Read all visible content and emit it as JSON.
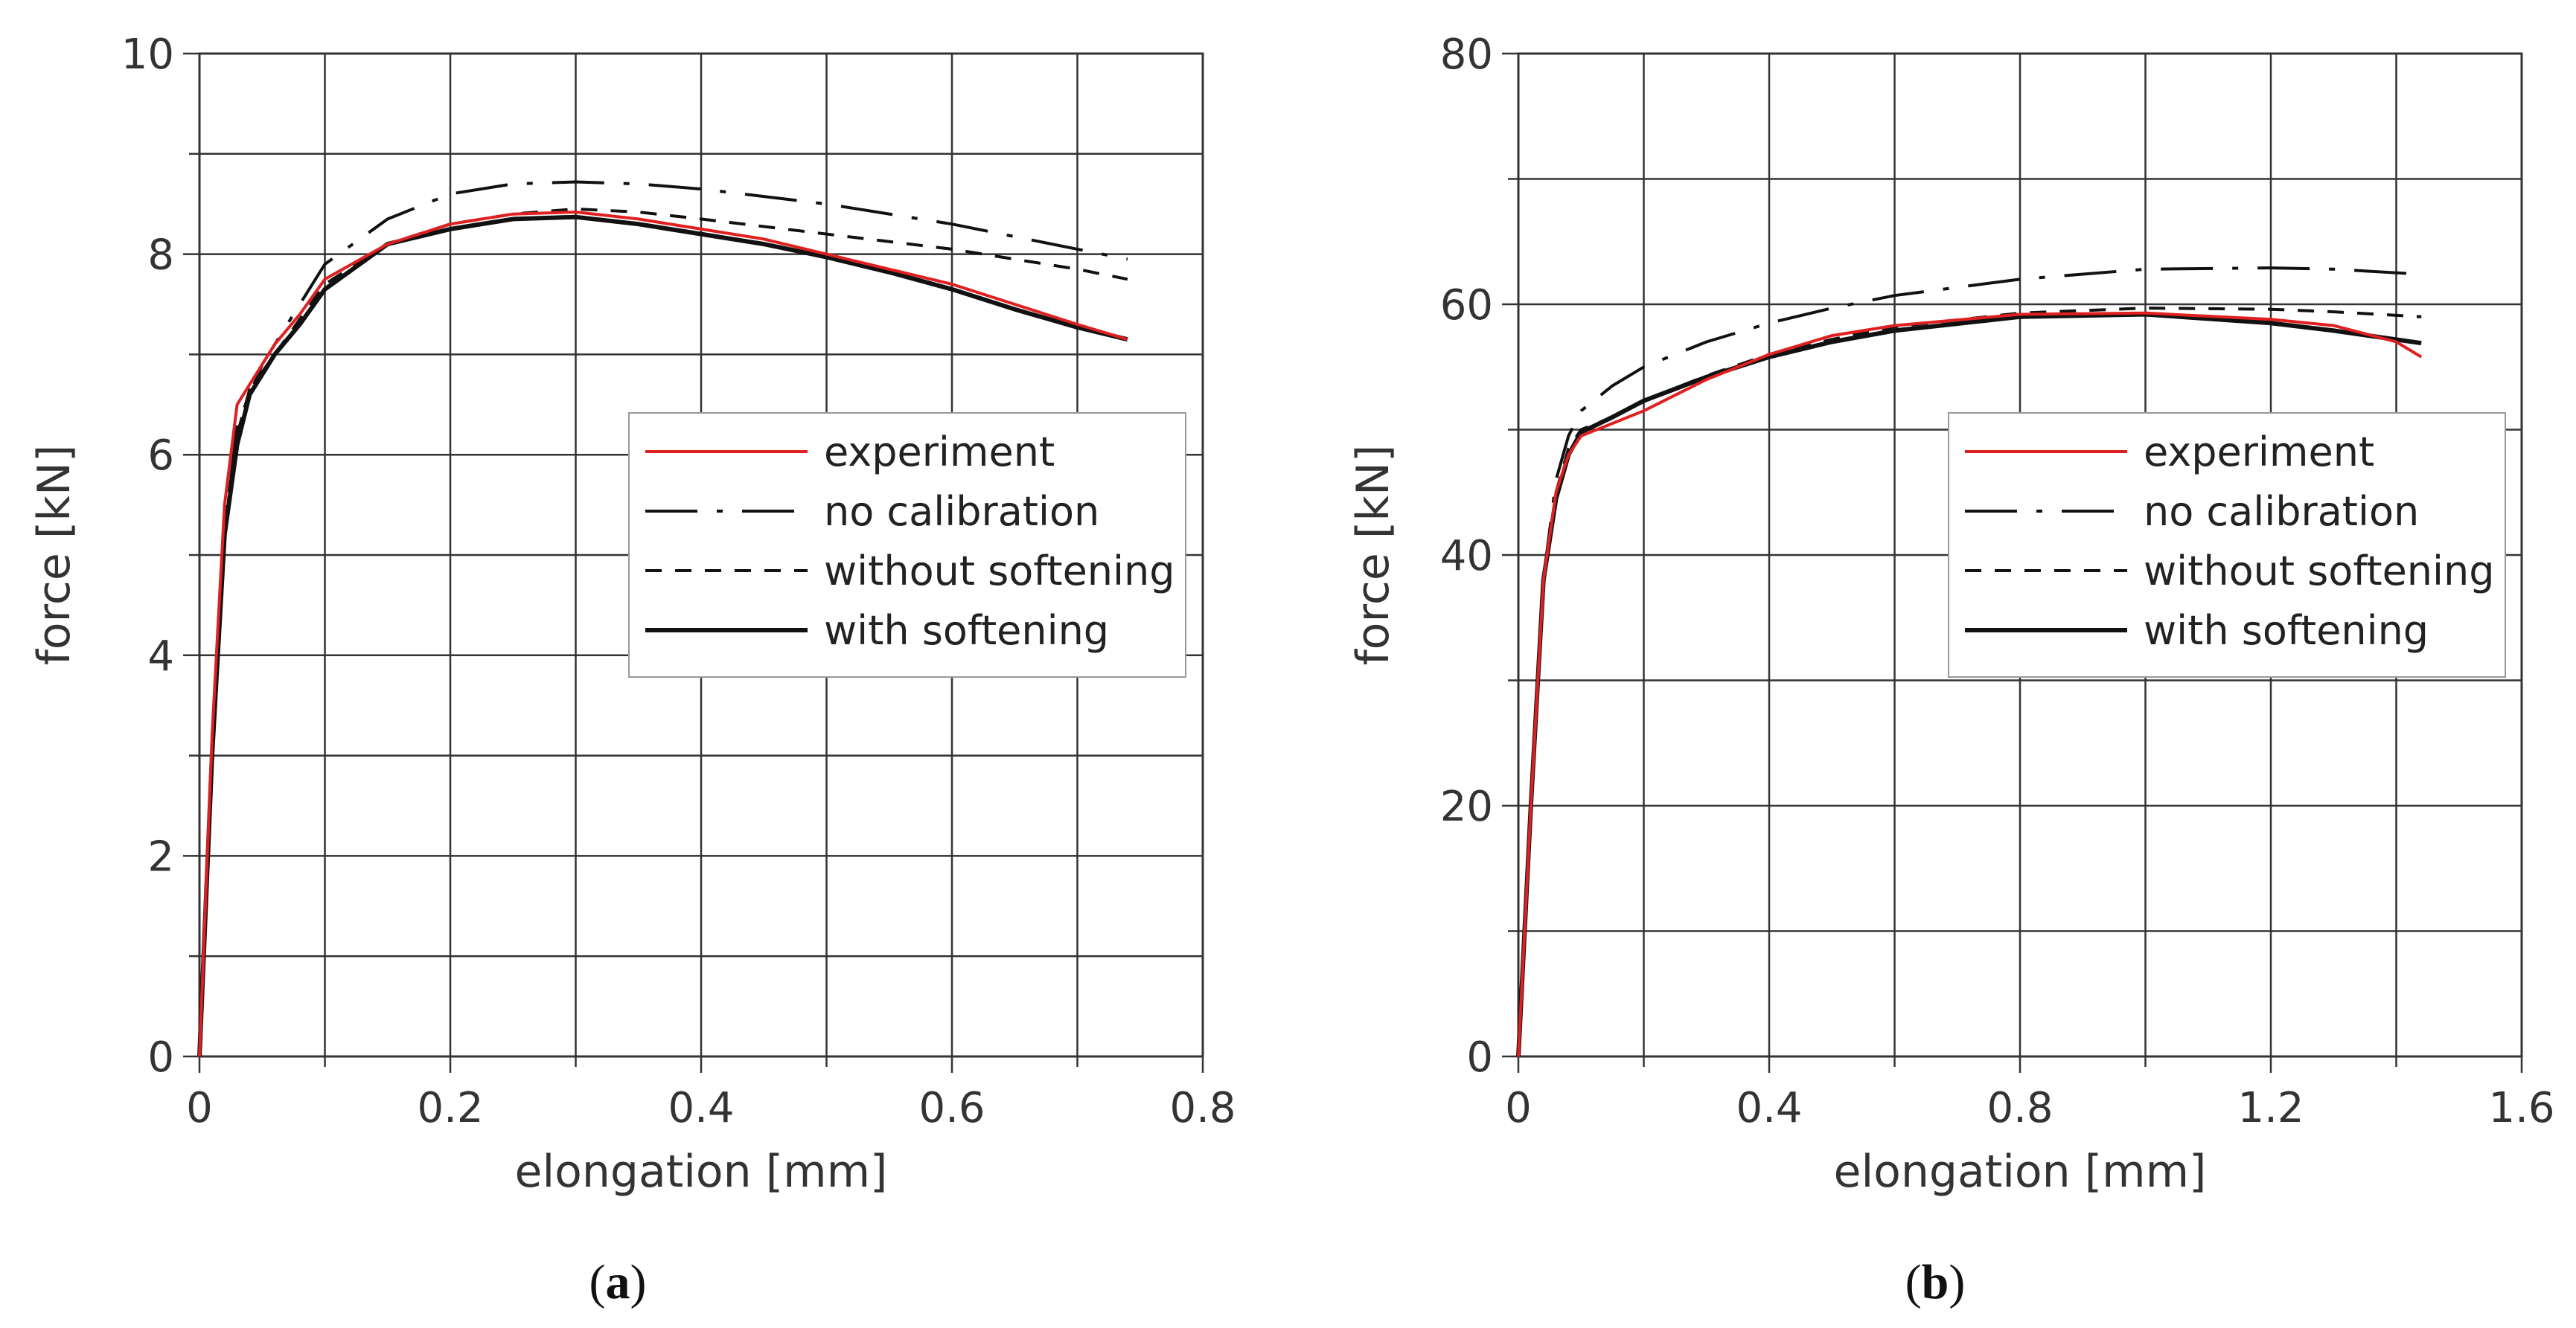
{
  "colors": {
    "experiment": "#e02020",
    "model": "#111111",
    "grid": "#333333"
  },
  "chart_data": [
    {
      "type": "line",
      "panel_label": "(a)",
      "panel_letter": "a",
      "xlabel": "elongation [mm]",
      "ylabel": "force [kN]",
      "xlim": [
        0,
        0.8
      ],
      "ylim": [
        0,
        10
      ],
      "xticks": [
        0,
        0.2,
        0.4,
        0.6,
        0.8
      ],
      "xtick_labels": [
        "0",
        "0.2",
        "0.4",
        "0.6",
        "0.8"
      ],
      "yticks": [
        0,
        2,
        4,
        6,
        8,
        10
      ],
      "ytick_labels": [
        "0",
        "2",
        "4",
        "6",
        "8",
        "10"
      ],
      "xminor": 0.1,
      "yminor": 1,
      "legend_position": "center-right",
      "series": [
        {
          "name": "experiment",
          "style": "solid-red",
          "x": [
            0,
            0.01,
            0.02,
            0.03,
            0.04,
            0.06,
            0.08,
            0.1,
            0.15,
            0.2,
            0.25,
            0.3,
            0.35,
            0.4,
            0.45,
            0.5,
            0.55,
            0.6,
            0.65,
            0.7,
            0.74
          ],
          "y": [
            0,
            3.2,
            5.5,
            6.5,
            6.7,
            7.1,
            7.4,
            7.75,
            8.1,
            8.3,
            8.4,
            8.42,
            8.35,
            8.25,
            8.15,
            8.0,
            7.85,
            7.7,
            7.5,
            7.3,
            7.15
          ]
        },
        {
          "name": "no calibration",
          "style": "dash-dot",
          "x": [
            0,
            0.01,
            0.02,
            0.03,
            0.05,
            0.08,
            0.1,
            0.15,
            0.2,
            0.25,
            0.3,
            0.35,
            0.4,
            0.5,
            0.6,
            0.7,
            0.74
          ],
          "y": [
            0,
            3.0,
            5.2,
            6.3,
            6.9,
            7.5,
            7.9,
            8.35,
            8.6,
            8.7,
            8.72,
            8.7,
            8.65,
            8.5,
            8.3,
            8.05,
            7.95
          ]
        },
        {
          "name": "without softening",
          "style": "dashed",
          "x": [
            0,
            0.01,
            0.02,
            0.03,
            0.04,
            0.06,
            0.08,
            0.1,
            0.15,
            0.2,
            0.25,
            0.3,
            0.35,
            0.4,
            0.5,
            0.6,
            0.7,
            0.74
          ],
          "y": [
            0,
            3.1,
            5.3,
            6.2,
            6.65,
            7.0,
            7.35,
            7.7,
            8.1,
            8.3,
            8.4,
            8.45,
            8.42,
            8.35,
            8.2,
            8.05,
            7.85,
            7.75
          ]
        },
        {
          "name": "with softening",
          "style": "solid-black",
          "x": [
            0,
            0.01,
            0.02,
            0.03,
            0.04,
            0.06,
            0.08,
            0.1,
            0.15,
            0.2,
            0.25,
            0.3,
            0.35,
            0.4,
            0.45,
            0.5,
            0.55,
            0.6,
            0.65,
            0.7,
            0.74
          ],
          "y": [
            0,
            3.0,
            5.2,
            6.1,
            6.6,
            7.0,
            7.3,
            7.65,
            8.1,
            8.25,
            8.35,
            8.37,
            8.3,
            8.2,
            8.1,
            7.97,
            7.82,
            7.65,
            7.45,
            7.27,
            7.15
          ]
        }
      ]
    },
    {
      "type": "line",
      "panel_label": "(b)",
      "panel_letter": "b",
      "xlabel": "elongation [mm]",
      "ylabel": "force [kN]",
      "xlim": [
        0,
        1.6
      ],
      "ylim": [
        0,
        80
      ],
      "xticks": [
        0,
        0.4,
        0.8,
        1.2,
        1.6
      ],
      "xtick_labels": [
        "0",
        "0.4",
        "0.8",
        "1.2",
        "1.6"
      ],
      "yticks": [
        0,
        20,
        40,
        60,
        80
      ],
      "ytick_labels": [
        "0",
        "20",
        "40",
        "60",
        "80"
      ],
      "xminor": 0.2,
      "yminor": 10,
      "legend_position": "center-right",
      "series": [
        {
          "name": "experiment",
          "style": "solid-red",
          "x": [
            0,
            0.02,
            0.04,
            0.06,
            0.08,
            0.1,
            0.15,
            0.2,
            0.3,
            0.4,
            0.5,
            0.6,
            0.8,
            1.0,
            1.2,
            1.3,
            1.4,
            1.44
          ],
          "y": [
            0,
            20,
            38,
            45,
            48,
            49.5,
            50.5,
            51.5,
            54,
            56,
            57.5,
            58.3,
            59.2,
            59.3,
            58.8,
            58.3,
            57.0,
            55.8
          ]
        },
        {
          "name": "no calibration",
          "style": "dash-dot",
          "x": [
            0,
            0.02,
            0.04,
            0.06,
            0.08,
            0.1,
            0.15,
            0.2,
            0.3,
            0.4,
            0.5,
            0.6,
            0.8,
            1.0,
            1.2,
            1.3,
            1.44
          ],
          "y": [
            0,
            20,
            38,
            46,
            49.5,
            51.5,
            53.5,
            55,
            57,
            58.5,
            59.7,
            60.7,
            62,
            62.8,
            62.9,
            62.8,
            62.4
          ]
        },
        {
          "name": "without softening",
          "style": "dashed",
          "x": [
            0,
            0.02,
            0.04,
            0.06,
            0.08,
            0.1,
            0.15,
            0.2,
            0.3,
            0.4,
            0.5,
            0.6,
            0.8,
            1.0,
            1.2,
            1.3,
            1.44
          ],
          "y": [
            0,
            20,
            38,
            45,
            48.5,
            50,
            51,
            52.3,
            54.3,
            56,
            57.2,
            58.2,
            59.3,
            59.7,
            59.6,
            59.4,
            59.0
          ]
        },
        {
          "name": "with softening",
          "style": "solid-black",
          "x": [
            0,
            0.02,
            0.04,
            0.06,
            0.08,
            0.1,
            0.15,
            0.2,
            0.3,
            0.4,
            0.5,
            0.6,
            0.8,
            1.0,
            1.2,
            1.3,
            1.44
          ],
          "y": [
            0,
            20,
            38,
            44.5,
            48,
            49.8,
            51,
            52.3,
            54.2,
            55.8,
            57.0,
            57.9,
            59.0,
            59.2,
            58.5,
            57.9,
            56.9
          ]
        }
      ]
    }
  ]
}
